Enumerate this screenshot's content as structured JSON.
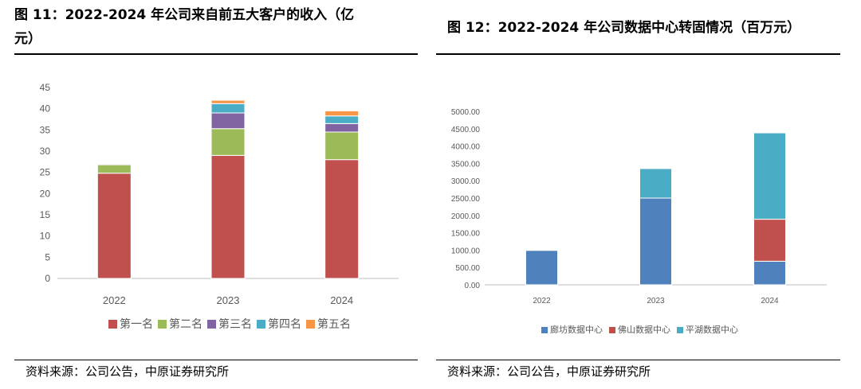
{
  "figures": [
    {
      "title_line1": "图 11：2022-2024 年公司来自前五大客户的收入（亿",
      "title_line2": "元）",
      "source": "资料来源：公司公告，中原证券研究所"
    },
    {
      "title": "图 12：2022-2024 年公司数据中心转固情况（百万元）",
      "source": "资料来源：公司公告，中原证券研究所"
    }
  ],
  "chart_data": [
    {
      "type": "bar",
      "stacked": true,
      "categories": [
        "2022",
        "2023",
        "2024"
      ],
      "series": [
        {
          "name": "第一名",
          "color": "#c0504d",
          "values": [
            24.8,
            29.0,
            28.0
          ]
        },
        {
          "name": "第二名",
          "color": "#9bbb59",
          "values": [
            2.0,
            6.3,
            6.5
          ]
        },
        {
          "name": "第三名",
          "color": "#8064a2",
          "values": [
            0.2,
            3.7,
            2.0
          ]
        },
        {
          "name": "第四名",
          "color": "#4bacc6",
          "values": [
            0.1,
            2.2,
            1.8
          ]
        },
        {
          "name": "第五名",
          "color": "#f79646",
          "values": [
            0.1,
            0.8,
            1.2
          ]
        }
      ],
      "yticks": [
        "0",
        "5",
        "10",
        "15",
        "20",
        "25",
        "30",
        "35",
        "40",
        "45"
      ],
      "ylim": [
        0,
        45
      ],
      "grid": false,
      "legend_position": "bottom"
    },
    {
      "type": "bar",
      "stacked": true,
      "categories": [
        "2022",
        "2023",
        "2024"
      ],
      "series": [
        {
          "name": "廊坊数据中心",
          "color": "#4f81bd",
          "values": [
            990,
            2500,
            680
          ]
        },
        {
          "name": "佛山数据中心",
          "color": "#c0504d",
          "values": [
            0,
            0,
            1210
          ]
        },
        {
          "name": "平湖数据中心",
          "color": "#4bacc6",
          "values": [
            0,
            850,
            2490
          ]
        }
      ],
      "yticks": [
        "0.00",
        "500.00",
        "1000.00",
        "1500.00",
        "2000.00",
        "2500.00",
        "3000.00",
        "3500.00",
        "4000.00",
        "4500.00",
        "5000.00"
      ],
      "ylim": [
        0,
        5000
      ],
      "grid": false,
      "legend_position": "bottom"
    }
  ]
}
